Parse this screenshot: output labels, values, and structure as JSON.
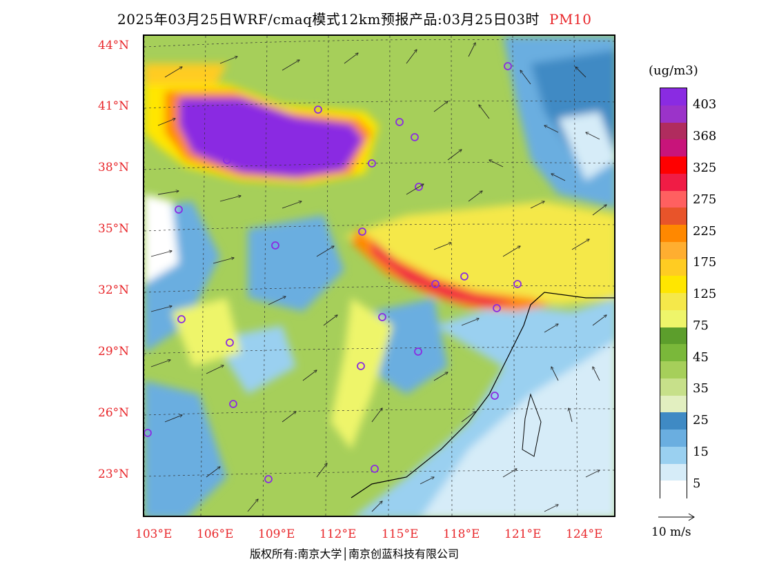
{
  "title": {
    "main": "2025年03月25日WRF/cmaq模式12km预报产品:03月25日03时",
    "species": "PM10"
  },
  "axes": {
    "lat_labels": [
      "44°N",
      "41°N",
      "38°N",
      "35°N",
      "32°N",
      "29°N",
      "26°N",
      "23°N"
    ],
    "lon_labels": [
      "103°E",
      "106°E",
      "109°E",
      "112°E",
      "115°E",
      "118°E",
      "121°E",
      "124°E"
    ]
  },
  "legend": {
    "unit": "(ug/m3)",
    "labels": [
      "403",
      "368",
      "325",
      "275",
      "225",
      "175",
      "125",
      "75",
      "45",
      "35",
      "25",
      "15",
      "5"
    ],
    "colors": [
      "#8a2be2",
      "#9b33c9",
      "#b02c5e",
      "#c8147a",
      "#ff0000",
      "#f01c45",
      "#ff6060",
      "#e8542a",
      "#ff8800",
      "#ffae30",
      "#ffcc22",
      "#ffe600",
      "#f5e84a",
      "#eef56a",
      "#5c9e2c",
      "#7ab83a",
      "#a6cf5a",
      "#c7e08a",
      "#e2efc0",
      "#3f8ac4",
      "#6aaee0",
      "#9ad0f0",
      "#d6ecf8",
      "#ffffff"
    ]
  },
  "wind_reference": {
    "label": "10 m/s"
  },
  "copyright": "版权所有:南京大学│南京创蓝科技有限公司"
}
